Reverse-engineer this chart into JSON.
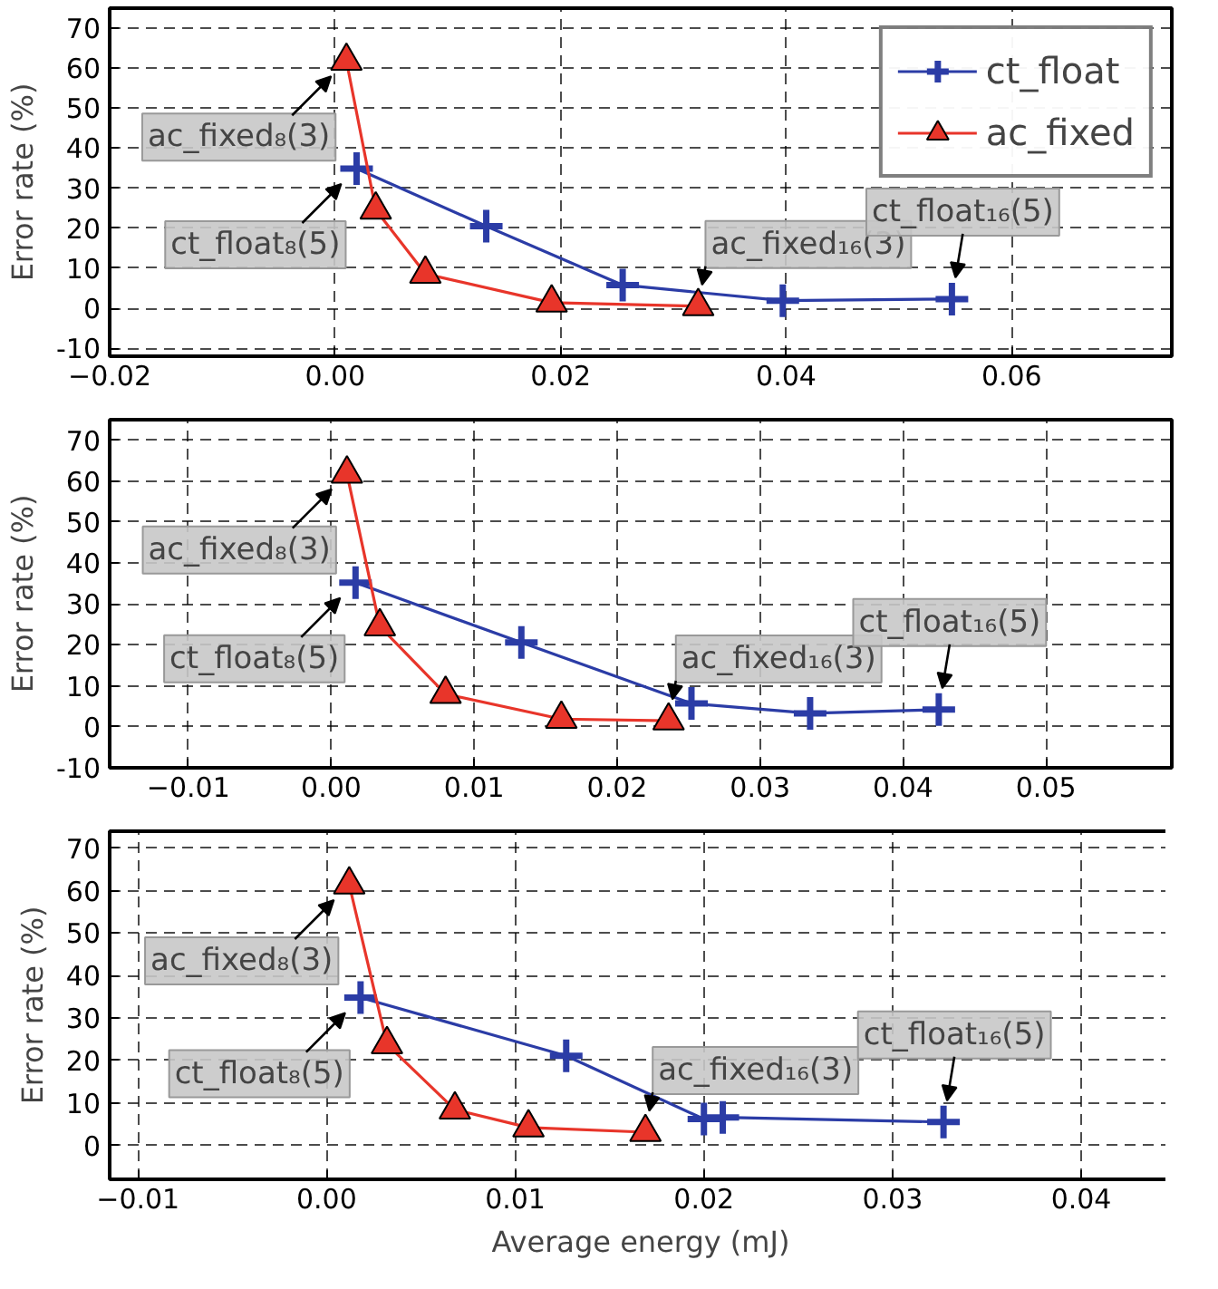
{
  "chart_data": [
    {
      "type": "line",
      "ylabel": "Error rate (%)",
      "xlim": [
        -0.02,
        0.0742
      ],
      "ylim": [
        -12,
        75
      ],
      "xticks": [
        {
          "value": -0.02,
          "label": "−0.02"
        },
        {
          "value": 0,
          "label": "0.00"
        },
        {
          "value": 0.02,
          "label": "0.02"
        },
        {
          "value": 0.04,
          "label": "0.04"
        },
        {
          "value": 0.06,
          "label": "0.06"
        }
      ],
      "yticks": [
        -10,
        0,
        10,
        20,
        30,
        40,
        50,
        60,
        70
      ],
      "grid": true,
      "legend": "top right",
      "line_style": "solid",
      "series": [
        {
          "name": "ct_float",
          "color": "#2b3ca6",
          "marker": "cross",
          "x": [
            0.0019,
            0.0134,
            0.0255,
            0.0397,
            0.0547
          ],
          "values": [
            34.9,
            20.5,
            5.8,
            1.9,
            2.3
          ]
        },
        {
          "name": "ac_fixed",
          "color": "#e8352a",
          "marker": "triangle",
          "x": [
            0.001,
            0.0036,
            0.008,
            0.0192,
            0.0322
          ],
          "values": [
            61.8,
            24.6,
            8.6,
            1.4,
            0.5
          ]
        }
      ],
      "annotations": [
        {
          "text": "ac_fixed₈(3)",
          "x": 0.001,
          "y": 61.8
        },
        {
          "text": "ct_float₈(5)",
          "x": 0.0019,
          "y": 34.9
        },
        {
          "text": "ac_fixed₁₆(3)",
          "x": 0.0322,
          "y": 0.5
        },
        {
          "text": "ct_float₁₆(5)",
          "x": 0.0547,
          "y": 2.3
        }
      ]
    },
    {
      "type": "line",
      "ylabel": "Error rate (%)",
      "xlim": [
        -0.0155,
        0.0588
      ],
      "ylim": [
        -10,
        75
      ],
      "xticks": [
        {
          "value": -0.01,
          "label": "−0.01"
        },
        {
          "value": 0,
          "label": "0.00"
        },
        {
          "value": 0.01,
          "label": "0.01"
        },
        {
          "value": 0.02,
          "label": "0.02"
        },
        {
          "value": 0.03,
          "label": "0.03"
        },
        {
          "value": 0.04,
          "label": "0.04"
        },
        {
          "value": 0.05,
          "label": "0.05"
        }
      ],
      "yticks": [
        -10,
        0,
        10,
        20,
        30,
        40,
        50,
        60,
        70
      ],
      "grid": true,
      "line_style": "solid",
      "series": [
        {
          "color": "#2b3ca6",
          "marker": "cross",
          "x": [
            0.0017,
            0.0133,
            0.0252,
            0.0335,
            0.0425
          ],
          "values": [
            35.2,
            20.6,
            5.7,
            3.3,
            4.2
          ]
        },
        {
          "color": "#e8352a",
          "marker": "triangle",
          "x": [
            0.0011,
            0.0034,
            0.008,
            0.0161,
            0.0236
          ],
          "values": [
            61.8,
            24.5,
            8.0,
            1.9,
            1.5
          ]
        }
      ],
      "annotations": [
        {
          "text": "ac_fixed₈(3)",
          "x": 0.0011,
          "y": 61.8
        },
        {
          "text": "ct_float₈(5)",
          "x": 0.0017,
          "y": 35.2
        },
        {
          "text": "ac_fixed₁₆(3)",
          "x": 0.0236,
          "y": 1.5
        },
        {
          "text": "ct_float₁₆(5)",
          "x": 0.0425,
          "y": 4.2
        }
      ]
    },
    {
      "type": "line",
      "xlabel": "Average energy (mJ)",
      "ylabel": "Error rate (%)",
      "xlim": [
        -0.0115,
        0.0448
      ],
      "ylim": [
        -8,
        74
      ],
      "xticks": [
        {
          "value": -0.01,
          "label": "−0.01"
        },
        {
          "value": 0,
          "label": "0.00"
        },
        {
          "value": 0.01,
          "label": "0.01"
        },
        {
          "value": 0.02,
          "label": "0.02"
        },
        {
          "value": 0.03,
          "label": "0.03"
        },
        {
          "value": 0.04,
          "label": "0.04"
        }
      ],
      "yticks": [
        0,
        10,
        20,
        30,
        40,
        50,
        60,
        70
      ],
      "grid": true,
      "line_style": "solid",
      "series": [
        {
          "color": "#2b3ca6",
          "marker": "cross",
          "x": [
            0.0018,
            0.0127,
            0.02,
            0.021,
            0.0327
          ],
          "values": [
            34.8,
            21.1,
            6.2,
            6.6,
            5.5
          ]
        },
        {
          "color": "#e8352a",
          "marker": "triangle",
          "x": [
            0.0012,
            0.0032,
            0.0068,
            0.0107,
            0.0169
          ],
          "values": [
            61.4,
            23.8,
            8.4,
            4.2,
            3.1
          ]
        }
      ],
      "annotations": [
        {
          "text": "ac_fixed₈(3)",
          "x": 0.0012,
          "y": 61.4
        },
        {
          "text": "ct_float₈(5)",
          "x": 0.0018,
          "y": 34.8
        },
        {
          "text": "ac_fixed₁₆(3)",
          "x": 0.0169,
          "y": 3.1
        },
        {
          "text": "ct_float₁₆(5)",
          "x": 0.0327,
          "y": 5.5
        }
      ]
    }
  ]
}
